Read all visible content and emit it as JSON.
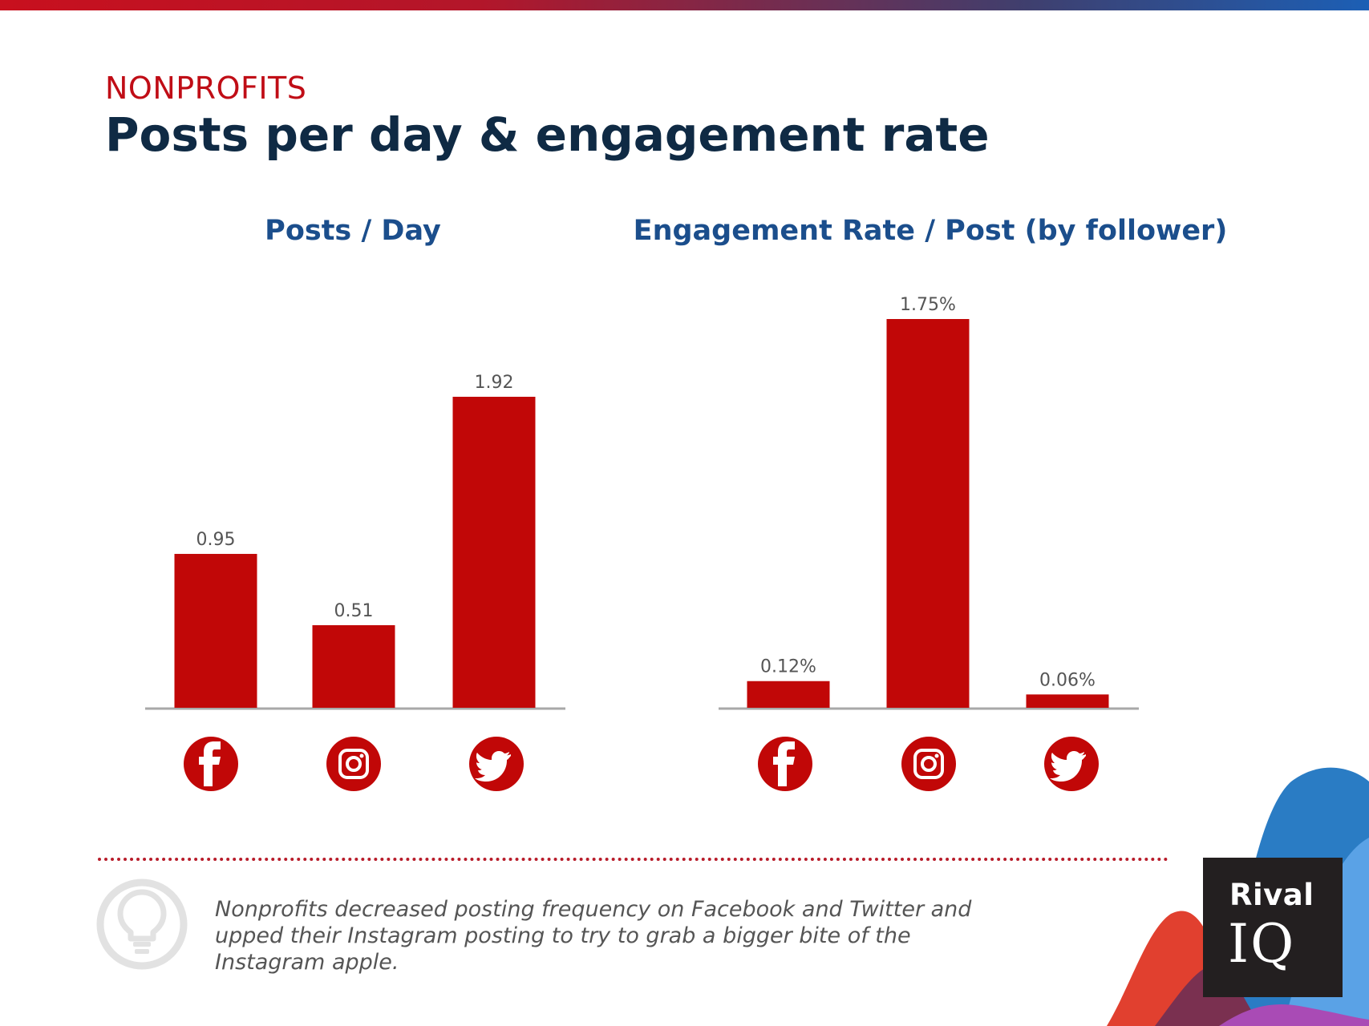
{
  "header": {
    "category": "NONPROFITS",
    "title": "Posts per day & engagement rate"
  },
  "insight": {
    "text": "Nonprofits decreased posting frequency on Facebook and Twitter and upped their Instagram posting to try to grab a bigger bite of the Instagram apple.",
    "icon": "lightbulb-icon"
  },
  "logo": {
    "line1": "Rival",
    "line2": "IQ"
  },
  "colors": {
    "bar": "#c10707",
    "title": "#0f2a44",
    "chart_title": "#1b4e8c",
    "category": "#c00d16"
  },
  "chart_data": [
    {
      "type": "bar",
      "title": "Posts / Day",
      "categories": [
        "facebook-icon",
        "instagram-icon",
        "twitter-icon"
      ],
      "values": [
        0.95,
        0.51,
        1.92
      ],
      "value_labels": [
        "0.95",
        "0.51",
        "1.92"
      ],
      "ylim": [
        0,
        2.4
      ]
    },
    {
      "type": "bar",
      "title": "Engagement Rate / Post (by follower)",
      "categories": [
        "facebook-icon",
        "instagram-icon",
        "twitter-icon"
      ],
      "values": [
        0.12,
        1.75,
        0.06
      ],
      "value_labels": [
        "0.12%",
        "1.75%",
        "0.06%"
      ],
      "ylim": [
        0,
        1.75
      ]
    }
  ]
}
